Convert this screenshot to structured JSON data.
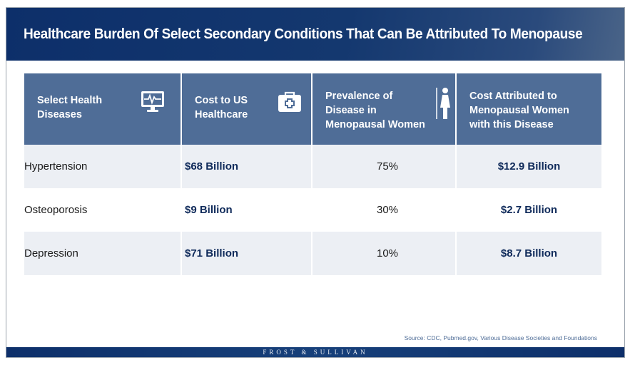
{
  "title": "Healthcare Burden Of Select Secondary Conditions That Can Be Attributed To Menopause",
  "table": {
    "headers": [
      {
        "label_line1": "Select Health",
        "label_line2": "Diseases",
        "label_line3": "",
        "icon": "monitor-heartbeat-icon"
      },
      {
        "label_line1": "Cost to US",
        "label_line2": "Healthcare",
        "label_line3": "",
        "icon": "medical-kit-icon"
      },
      {
        "label_line1": "Prevalence of",
        "label_line2": "Disease in",
        "label_line3": "Menopausal Women",
        "icon": "woman-icon"
      },
      {
        "label_line1": "Cost Attributed to",
        "label_line2": "Menopausal Women",
        "label_line3": "with this Disease",
        "icon": ""
      }
    ],
    "rows": [
      {
        "disease": "Hypertension",
        "cost": "$68 Billion",
        "prevalence": "75%",
        "attributed": "$12.9 Billion"
      },
      {
        "disease": "Osteoporosis",
        "cost": "$9 Billion",
        "prevalence": "30%",
        "attributed": "$2.7 Billion"
      },
      {
        "disease": "Depression",
        "cost": "$71 Billion",
        "prevalence": "10%",
        "attributed": "$8.7 Billion"
      }
    ]
  },
  "source": "Source: CDC, Pubmed.gov, Various Disease Societies and Foundations",
  "footer": "FROST & SULLIVAN",
  "colors": {
    "title_bar": "#0d2f6a",
    "header": "#4f6d97",
    "shade": "#eceff4",
    "value": "#0f2a5a"
  }
}
